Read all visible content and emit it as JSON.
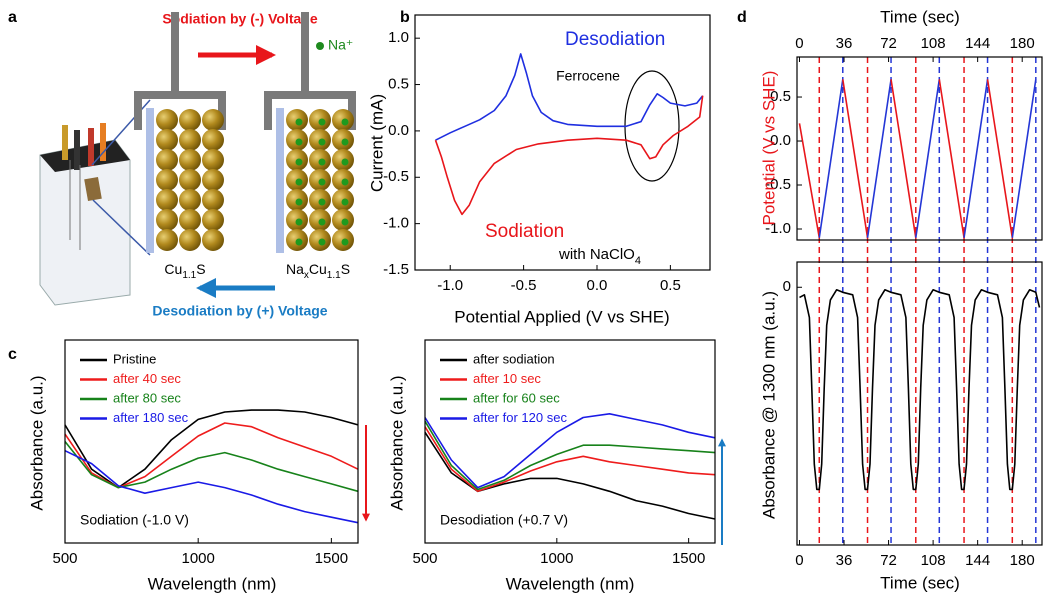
{
  "diagram": {
    "label": "a",
    "sodiation": "Sodiation by (-) Voltage",
    "desodiation": "Desodiation by (+) Voltage",
    "ion": "Na⁺",
    "left_electrode": [
      "Cu",
      "1.1",
      "S"
    ],
    "right_electrode": [
      "Na",
      "x",
      "Cu",
      "1.1",
      "S"
    ]
  },
  "chart_data": [
    {
      "type": "line",
      "panel": "b",
      "xlabel": "Potential Applied (V vs SHE)",
      "ylabel": "Current (mA)",
      "xlim": [
        -1.24,
        0.77
      ],
      "ylim": [
        -1.5,
        1.25
      ],
      "xticks": [
        {
          "value": -1,
          "label": "-1.0"
        },
        -0.5,
        {
          "value": 0,
          "label": "0.0"
        },
        0.5
      ],
      "yticks": [
        {
          "value": 1,
          "label": "1.0"
        },
        0.5,
        {
          "value": 0,
          "label": "0.0"
        },
        -0.5,
        {
          "value": -1,
          "label": "-1.0"
        },
        -1.5
      ],
      "annotations": {
        "peak": "Ferrocene",
        "electrolyte": [
          "with NaClO",
          "4"
        ]
      },
      "series": [
        {
          "name": "Desodiation",
          "color": "#1f2fe0",
          "x": [
            -1.1,
            -1.0,
            -0.9,
            -0.8,
            -0.7,
            -0.62,
            -0.56,
            -0.52,
            -0.48,
            -0.44,
            -0.38,
            -0.3,
            -0.2,
            0.0,
            0.2,
            0.3,
            0.36,
            0.41,
            0.45,
            0.5,
            0.6,
            0.68,
            0.72
          ],
          "values": [
            -0.1,
            -0.02,
            0.05,
            0.12,
            0.22,
            0.38,
            0.6,
            0.83,
            0.62,
            0.38,
            0.2,
            0.11,
            0.07,
            0.05,
            0.05,
            0.1,
            0.28,
            0.4,
            0.36,
            0.3,
            0.27,
            0.3,
            0.38
          ]
        },
        {
          "name": "Sodiation",
          "color": "#e8161b",
          "x": [
            0.72,
            0.7,
            0.62,
            0.52,
            0.45,
            0.4,
            0.36,
            0.3,
            0.2,
            0.0,
            -0.2,
            -0.4,
            -0.55,
            -0.7,
            -0.8,
            -0.87,
            -0.92,
            -0.97,
            -1.02,
            -1.06,
            -1.1
          ],
          "values": [
            0.38,
            0.15,
            0.05,
            -0.05,
            -0.15,
            -0.28,
            -0.3,
            -0.15,
            -0.1,
            -0.08,
            -0.1,
            -0.14,
            -0.2,
            -0.35,
            -0.55,
            -0.8,
            -0.9,
            -0.75,
            -0.5,
            -0.28,
            -0.1
          ]
        }
      ]
    },
    {
      "type": "line",
      "panel": "c",
      "xlabel": "Wavelength (nm)",
      "ylabel": "Absorbance (a.u.)",
      "annotation": "Sodiation (-1.0 V)",
      "xlim": [
        500,
        1600
      ],
      "ylim": [
        0,
        1.1
      ],
      "xticks": [
        500,
        1000,
        1500
      ],
      "x": [
        500,
        600,
        700,
        800,
        900,
        1000,
        1100,
        1200,
        1300,
        1400,
        1500,
        1600
      ],
      "series": [
        {
          "name": "Pristine",
          "color": "#000000",
          "values": [
            0.64,
            0.4,
            0.3,
            0.4,
            0.56,
            0.67,
            0.71,
            0.72,
            0.72,
            0.71,
            0.68,
            0.64
          ]
        },
        {
          "name": "after 40 sec",
          "color": "#ee1c1c",
          "values": [
            0.59,
            0.38,
            0.3,
            0.36,
            0.47,
            0.58,
            0.65,
            0.63,
            0.57,
            0.52,
            0.47,
            0.4
          ]
        },
        {
          "name": "after 80 sec",
          "color": "#17821a",
          "values": [
            0.55,
            0.37,
            0.3,
            0.33,
            0.4,
            0.46,
            0.49,
            0.45,
            0.4,
            0.36,
            0.32,
            0.28
          ]
        },
        {
          "name": "after 180 sec",
          "color": "#1a1ae6",
          "values": [
            0.5,
            0.43,
            0.31,
            0.27,
            0.3,
            0.33,
            0.3,
            0.26,
            0.21,
            0.17,
            0.14,
            0.11
          ]
        }
      ]
    },
    {
      "type": "line",
      "xlabel": "Wavelength (nm)",
      "ylabel": "Absorbance (a.u.)",
      "annotation": "Desodiation (+0.7 V)",
      "xlim": [
        500,
        1600
      ],
      "ylim": [
        0,
        1.1
      ],
      "xticks": [
        500,
        1000,
        1500
      ],
      "x": [
        500,
        600,
        700,
        800,
        900,
        1000,
        1100,
        1200,
        1300,
        1400,
        1500,
        1600
      ],
      "series": [
        {
          "name": "after sodiation",
          "color": "#000000",
          "values": [
            0.6,
            0.38,
            0.28,
            0.32,
            0.35,
            0.35,
            0.32,
            0.28,
            0.23,
            0.2,
            0.16,
            0.13
          ]
        },
        {
          "name": "after 10 sec",
          "color": "#ee1c1c",
          "values": [
            0.63,
            0.4,
            0.28,
            0.33,
            0.39,
            0.44,
            0.47,
            0.44,
            0.42,
            0.4,
            0.38,
            0.37
          ]
        },
        {
          "name": "after for 60 sec",
          "color": "#17821a",
          "values": [
            0.66,
            0.42,
            0.29,
            0.34,
            0.42,
            0.48,
            0.53,
            0.53,
            0.52,
            0.51,
            0.5,
            0.49
          ]
        },
        {
          "name": "after for 120 sec",
          "color": "#1a1ae6",
          "values": [
            0.68,
            0.45,
            0.3,
            0.36,
            0.48,
            0.6,
            0.68,
            0.7,
            0.67,
            0.64,
            0.6,
            0.57
          ]
        }
      ]
    },
    {
      "type": "line",
      "panel": "d",
      "xlabel": "Time (sec)",
      "ylabel": "Potential (V vs SHE)",
      "ylabel_color": "#e8161b",
      "xlim": [
        -2,
        196
      ],
      "ylim": [
        -1.125,
        0.955
      ],
      "xticks": [
        0,
        36,
        72,
        108,
        144,
        180
      ],
      "yticks": [
        0.5,
        {
          "value": 0,
          "label": "0.0"
        },
        -0.5,
        {
          "value": -1,
          "label": "-1.0"
        }
      ],
      "falling_color": "#e8161b",
      "rising_color": "#2436d6",
      "x": [
        0,
        16,
        35,
        55,
        74,
        94,
        113,
        133,
        152,
        172,
        191
      ],
      "values": [
        0.2,
        -1.1,
        0.7,
        -1.1,
        0.7,
        -1.1,
        0.7,
        -1.1,
        0.7,
        -1.1,
        0.7
      ]
    },
    {
      "type": "line",
      "xlabel": "Time (sec)",
      "ylabel": "Absorbance @ 1300 nm (a.u.)",
      "color": "#000000",
      "xlim": [
        -2,
        196
      ],
      "ylim": [
        -1.02,
        0.1
      ],
      "xticks": [
        0,
        36,
        72,
        108,
        144,
        180
      ],
      "yticks": [
        0
      ],
      "x": [
        0,
        4,
        8,
        10,
        12,
        14,
        16,
        18,
        20,
        22,
        25,
        30,
        35,
        43,
        47,
        49,
        51,
        53,
        55,
        57,
        59,
        61,
        64,
        69,
        74,
        82,
        86,
        88,
        90,
        92,
        94,
        96,
        98,
        100,
        103,
        108,
        113,
        121,
        125,
        127,
        129,
        131,
        133,
        135,
        137,
        139,
        142,
        147,
        152,
        160,
        164,
        166,
        168,
        170,
        172,
        174,
        176,
        178,
        181,
        186,
        191,
        194
      ],
      "values": [
        -0.04,
        -0.03,
        -0.12,
        -0.4,
        -0.7,
        -0.8,
        -0.8,
        -0.7,
        -0.4,
        -0.15,
        -0.05,
        -0.01,
        -0.02,
        -0.03,
        -0.12,
        -0.4,
        -0.7,
        -0.8,
        -0.8,
        -0.7,
        -0.4,
        -0.15,
        -0.05,
        -0.01,
        -0.02,
        -0.03,
        -0.12,
        -0.4,
        -0.7,
        -0.8,
        -0.8,
        -0.7,
        -0.4,
        -0.15,
        -0.05,
        -0.01,
        -0.02,
        -0.03,
        -0.12,
        -0.4,
        -0.7,
        -0.8,
        -0.8,
        -0.7,
        -0.4,
        -0.15,
        -0.05,
        -0.01,
        -0.02,
        -0.03,
        -0.12,
        -0.4,
        -0.7,
        -0.8,
        -0.8,
        -0.7,
        -0.4,
        -0.15,
        -0.05,
        -0.01,
        -0.02,
        -0.08
      ]
    }
  ]
}
